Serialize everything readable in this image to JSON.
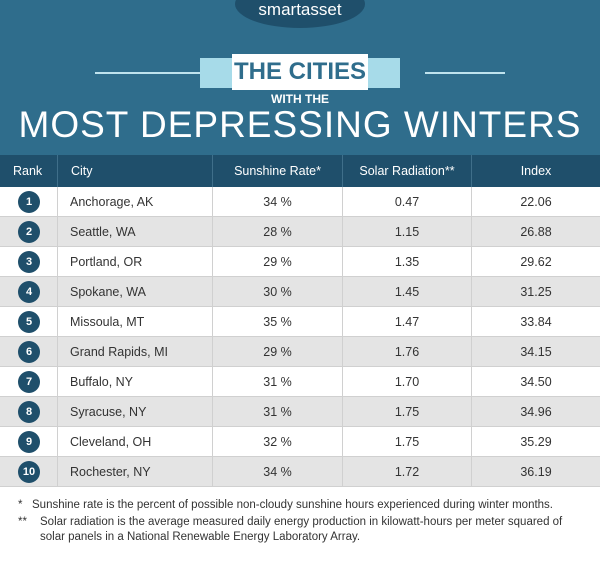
{
  "header": {
    "brand": "smartasset",
    "banner": "THE CITIES",
    "subtitle": "WITH THE",
    "title": "MOST DEPRESSING WINTERS"
  },
  "table": {
    "columns": [
      "Rank",
      "City",
      "Sunshine Rate*",
      "Solar Radiation**",
      "Index"
    ],
    "rows": [
      [
        "1",
        "Anchorage, AK",
        "34 %",
        "0.47",
        "22.06"
      ],
      [
        "2",
        "Seattle, WA",
        "28 %",
        "1.15",
        "26.88"
      ],
      [
        "3",
        "Portland, OR",
        "29 %",
        "1.35",
        "29.62"
      ],
      [
        "4",
        "Spokane, WA",
        "30 %",
        "1.45",
        "31.25"
      ],
      [
        "5",
        "Missoula, MT",
        "35 %",
        "1.47",
        "33.84"
      ],
      [
        "6",
        "Grand Rapids, MI",
        "29 %",
        "1.76",
        "34.15"
      ],
      [
        "7",
        "Buffalo, NY",
        "31 %",
        "1.70",
        "34.50"
      ],
      [
        "8",
        "Syracuse, NY",
        "31 %",
        "1.75",
        "34.96"
      ],
      [
        "9",
        "Cleveland, OH",
        "32 %",
        "1.75",
        "35.29"
      ],
      [
        "10",
        "Rochester, NY",
        "34 %",
        "1.72",
        "36.19"
      ]
    ]
  },
  "footnotes": [
    {
      "marker": "*",
      "text": "Sunshine rate is the percent of possible non-cloudy sunshine hours experienced during winter months."
    },
    {
      "marker": "**",
      "text": "Solar radiation is the average measured daily energy production in kilowatt-hours per meter squared of solar panels in a National Renewable Energy Laboratory Array."
    }
  ]
}
